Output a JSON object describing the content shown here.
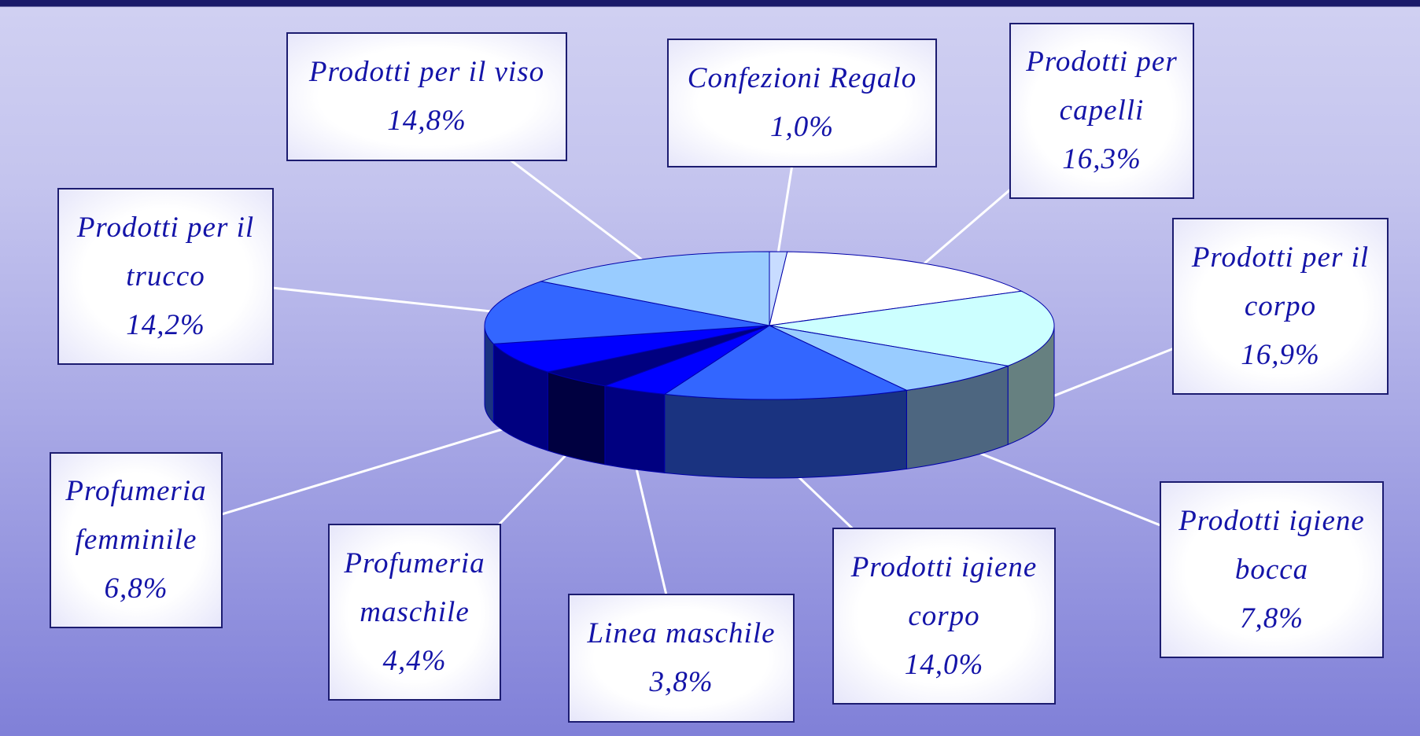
{
  "chart_data": {
    "type": "pie",
    "categories": [
      "Confezioni Regalo",
      "Prodotti per capelli",
      "Prodotti per il corpo",
      "Prodotti igiene bocca",
      "Prodotti igiene corpo",
      "Linea maschile",
      "Profumeria maschile",
      "Profumeria femminile",
      "Prodotti per il trucco",
      "Prodotti per il viso"
    ],
    "values": [
      1.0,
      16.3,
      16.9,
      7.8,
      14.0,
      3.8,
      4.4,
      6.8,
      14.2,
      14.8
    ],
    "value_labels": [
      "1,0%",
      "16,3%",
      "16,9%",
      "7,8%",
      "14,0%",
      "3,8%",
      "4,4%",
      "6,8%",
      "14,2%",
      "14,8%"
    ],
    "colors": [
      "#c8dcff",
      "#ffffff",
      "#ccffff",
      "#99ccff",
      "#3366ff",
      "#0000ff",
      "#000080",
      "#0000ff",
      "#3366ff",
      "#99ccff"
    ]
  }
}
